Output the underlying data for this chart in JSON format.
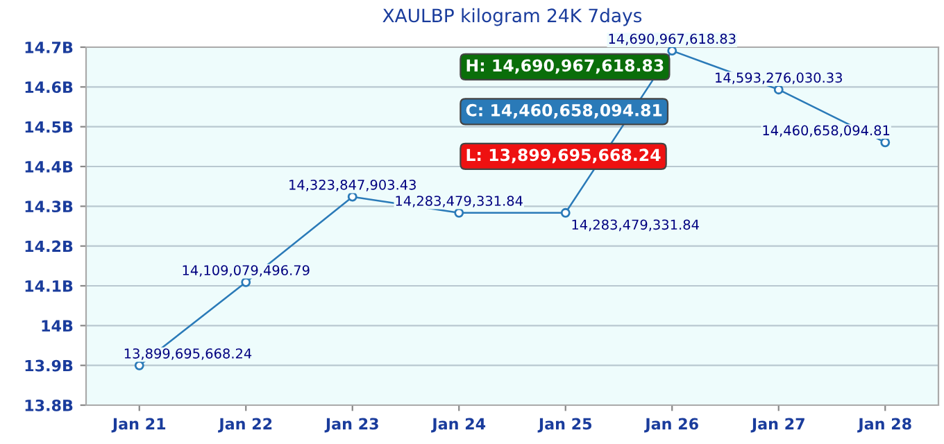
{
  "chart_data": {
    "type": "line",
    "title": "XAULBP kilogram 24K 7days",
    "categories": [
      "Jan 21",
      "Jan 22",
      "Jan 23",
      "Jan 24",
      "Jan 25",
      "Jan 26",
      "Jan 27",
      "Jan 28"
    ],
    "series": [
      {
        "color": "#2a7ab8",
        "values": [
          13899695668.24,
          14109079496.79,
          14323847903.43,
          14283479331.84,
          14283479331.84,
          14690967618.83,
          14593276030.33,
          14460658094.81
        ],
        "value_labels": [
          "13,899,695,668.24",
          "14,109,079,496.79",
          "14,323,847,903.43",
          "14,283,479,331.84",
          "14,283,479,331.84",
          "14,690,967,618.83",
          "14,593,276,030.33",
          "14,460,658,094.81"
        ]
      }
    ],
    "ylim": [
      13800000000,
      14700000000
    ],
    "yticks": [
      {
        "value": 13800000000,
        "label": "13.8B"
      },
      {
        "value": 13900000000,
        "label": "13.9B"
      },
      {
        "value": 14000000000,
        "label": "14B"
      },
      {
        "value": 14100000000,
        "label": "14.1B"
      },
      {
        "value": 14200000000,
        "label": "14.2B"
      },
      {
        "value": 14300000000,
        "label": "14.3B"
      },
      {
        "value": 14400000000,
        "label": "14.4B"
      },
      {
        "value": 14500000000,
        "label": "14.5B"
      },
      {
        "value": 14600000000,
        "label": "14.6B"
      },
      {
        "value": 14700000000,
        "label": "14.7B"
      }
    ],
    "grid": "y",
    "marker": "circle",
    "line_style": "solid",
    "annotations": [
      "H: 14,690,967,618.83",
      "C: 14,460,658,094.81",
      "L: 13,899,695,668.24"
    ]
  }
}
